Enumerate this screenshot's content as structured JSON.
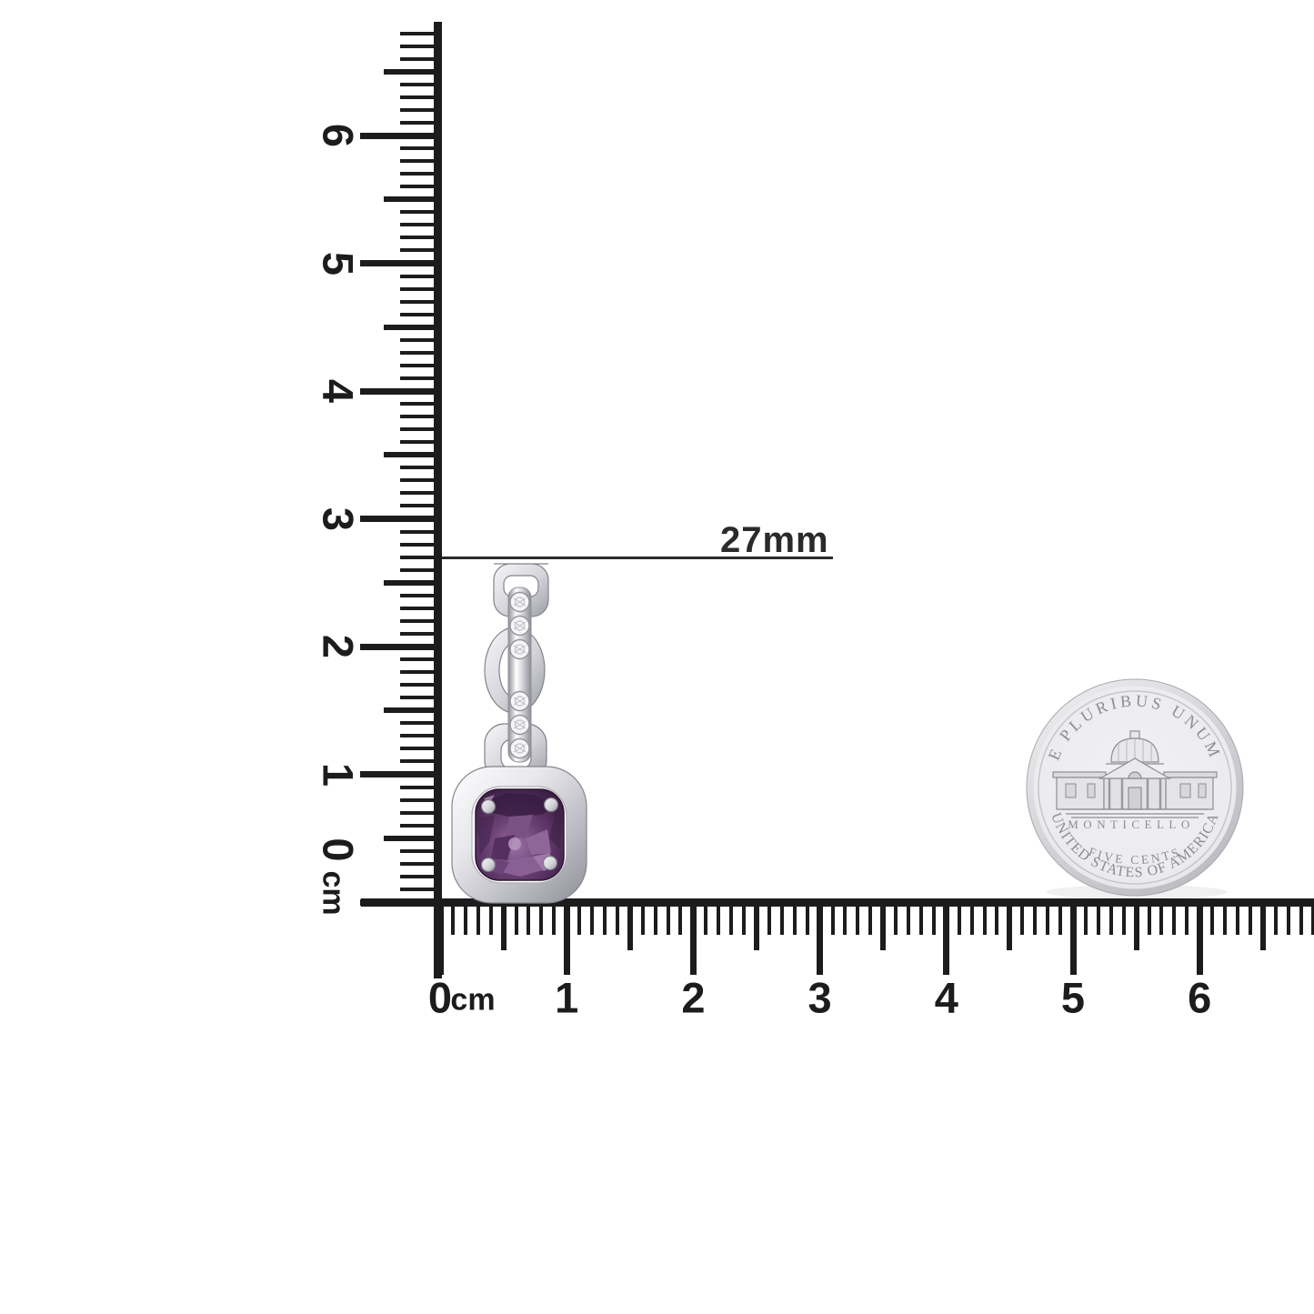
{
  "annotation": {
    "label": "27mm"
  },
  "rulers": {
    "vertical": {
      "origin_digit": "0",
      "unit_label": "cm",
      "labels": [
        "1",
        "2",
        "3",
        "4",
        "5",
        "6"
      ]
    },
    "horizontal": {
      "origin_digit": "0",
      "unit_label": "cm",
      "labels": [
        "1",
        "2",
        "3",
        "4",
        "5",
        "6"
      ]
    }
  },
  "coin": {
    "legend_top": "E PLURIBUS UNUM",
    "building": "MONTICELLO",
    "denomination": "FIVE CENTS",
    "legend_bottom": "UNITED STATES OF AMERICA"
  },
  "product": {
    "gemstone_color_name": "amethyst-purple",
    "metal_color_name": "white-silver"
  },
  "colors": {
    "ink": "#1c1c1c",
    "annotation_ink": "#2a2a2a",
    "metal_light": "#fdfdfe",
    "metal_mid": "#d8d8de",
    "metal_dark": "#8f8f98",
    "link_light": "#f7f7f9",
    "link_dark": "#9c9ca4",
    "gem_light": "#9d72a5",
    "gem_mid": "#6b4175",
    "gem_deep": "#4a2753",
    "gem_dark": "#341a3c",
    "diamond": "#f6f6f8",
    "coin_face": "#ececee",
    "coin_edge": "#bcbcc1",
    "coin_engraving": "#8c8c92"
  }
}
